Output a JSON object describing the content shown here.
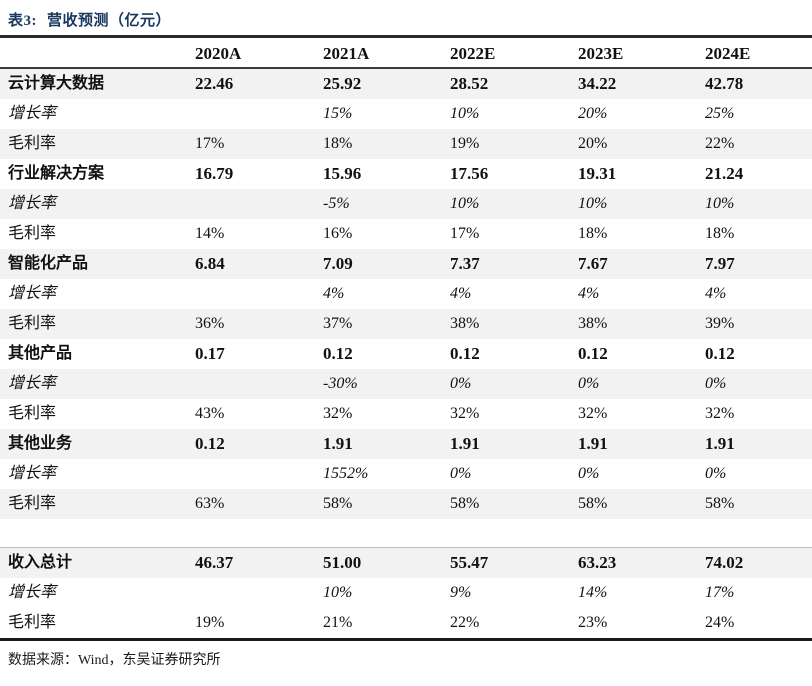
{
  "title": {
    "prefix": "表3:",
    "text": "营收预测（亿元）",
    "color": "#17375E"
  },
  "colors": {
    "title_navy": "#17375E",
    "row_stripe_gray": "#F2F2F2",
    "rule_dark": "#2b2b2b",
    "rule_light_gray": "#BFBFBF",
    "text": "#111111"
  },
  "table": {
    "columns": [
      "2020A",
      "2021A",
      "2022E",
      "2023E",
      "2024E"
    ],
    "rows": [
      {
        "label": "云计算大数据",
        "style": "bold",
        "shaded": true,
        "divider_below": false,
        "values": [
          "22.46",
          "25.92",
          "28.52",
          "34.22",
          "42.78"
        ]
      },
      {
        "label": "增长率",
        "style": "italic",
        "shaded": false,
        "divider_below": false,
        "values": [
          "",
          "15%",
          "10%",
          "20%",
          "25%"
        ]
      },
      {
        "label": "毛利率",
        "style": "regular",
        "shaded": true,
        "divider_below": false,
        "values": [
          "17%",
          "18%",
          "19%",
          "20%",
          "22%"
        ]
      },
      {
        "label": "行业解决方案",
        "style": "bold",
        "shaded": false,
        "divider_below": false,
        "values": [
          "16.79",
          "15.96",
          "17.56",
          "19.31",
          "21.24"
        ]
      },
      {
        "label": "增长率",
        "style": "italic",
        "shaded": true,
        "divider_below": false,
        "values": [
          "",
          "-5%",
          "10%",
          "10%",
          "10%"
        ]
      },
      {
        "label": "毛利率",
        "style": "regular",
        "shaded": false,
        "divider_below": false,
        "values": [
          "14%",
          "16%",
          "17%",
          "18%",
          "18%"
        ]
      },
      {
        "label": "智能化产品",
        "style": "bold",
        "shaded": true,
        "divider_below": false,
        "values": [
          "6.84",
          "7.09",
          "7.37",
          "7.67",
          "7.97"
        ]
      },
      {
        "label": "增长率",
        "style": "italic",
        "shaded": false,
        "divider_below": false,
        "values": [
          "",
          "4%",
          "4%",
          "4%",
          "4%"
        ]
      },
      {
        "label": "毛利率",
        "style": "regular",
        "shaded": true,
        "divider_below": false,
        "values": [
          "36%",
          "37%",
          "38%",
          "38%",
          "39%"
        ]
      },
      {
        "label": "其他产品",
        "style": "bold",
        "shaded": false,
        "divider_below": false,
        "values": [
          "0.17",
          "0.12",
          "0.12",
          "0.12",
          "0.12"
        ]
      },
      {
        "label": "增长率",
        "style": "italic",
        "shaded": true,
        "divider_below": false,
        "values": [
          "",
          "-30%",
          "0%",
          "0%",
          "0%"
        ]
      },
      {
        "label": "毛利率",
        "style": "regular",
        "shaded": false,
        "divider_below": false,
        "values": [
          "43%",
          "32%",
          "32%",
          "32%",
          "32%"
        ]
      },
      {
        "label": "其他业务",
        "style": "bold",
        "shaded": true,
        "divider_below": false,
        "values": [
          "0.12",
          "1.91",
          "1.91",
          "1.91",
          "1.91"
        ]
      },
      {
        "label": "增长率",
        "style": "italic",
        "shaded": false,
        "divider_below": false,
        "values": [
          "",
          "1552%",
          "0%",
          "0%",
          "0%"
        ]
      },
      {
        "label": "毛利率",
        "style": "regular",
        "shaded": true,
        "divider_below": false,
        "values": [
          "63%",
          "58%",
          "58%",
          "58%",
          "58%"
        ]
      },
      {
        "label": "",
        "style": "spacer",
        "shaded": false,
        "divider_below": true,
        "values": [
          "",
          "",
          "",
          "",
          ""
        ]
      },
      {
        "label": "收入总计",
        "style": "bold",
        "shaded": true,
        "divider_below": false,
        "values": [
          "46.37",
          "51.00",
          "55.47",
          "63.23",
          "74.02"
        ]
      },
      {
        "label": "增长率",
        "style": "italic",
        "shaded": false,
        "divider_below": false,
        "values": [
          "",
          "10%",
          "9%",
          "14%",
          "17%"
        ]
      },
      {
        "label": "毛利率",
        "style": "regular",
        "shaded": false,
        "divider_below": false,
        "values": [
          "19%",
          "21%",
          "22%",
          "23%",
          "24%"
        ]
      }
    ]
  },
  "footer": {
    "text": "数据来源：Wind，东吴证券研究所"
  }
}
